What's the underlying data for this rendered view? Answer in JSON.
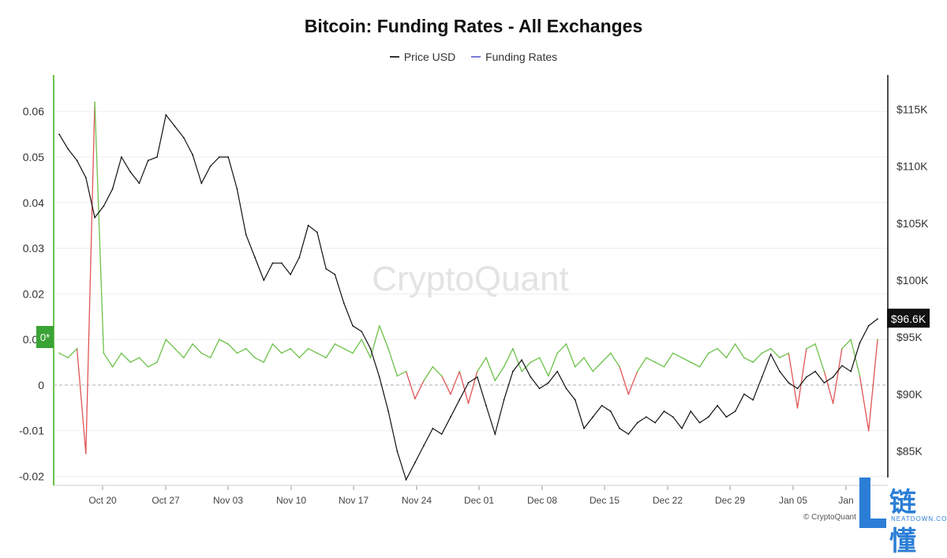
{
  "chart_data": {
    "type": "line",
    "title": "Bitcoin: Funding Rates - All Exchanges",
    "watermark": "CryptoQuant",
    "credit": "© CryptoQuant",
    "legend": [
      {
        "name": "Price USD",
        "color": "#333333"
      },
      {
        "name": "Funding Rates",
        "color": "#7b7bd6"
      }
    ],
    "legend_position": "top-center",
    "x_tick_labels": [
      "Oct 20",
      "Oct 27",
      "Nov 03",
      "Nov 10",
      "Nov 17",
      "Nov 24",
      "Dec 01",
      "Dec 08",
      "Dec 15",
      "Dec 22",
      "Dec 29",
      "Jan 05",
      "Jan"
    ],
    "left_axis": {
      "ticks": [
        -0.02,
        -0.01,
        0,
        0.01,
        0.02,
        0.03,
        0.04,
        0.05,
        0.06
      ],
      "tick_labels": [
        "-0.02",
        "-0.01",
        "0",
        "0.01",
        "0.02",
        "0.03",
        "0.04",
        "0.05",
        "0.06"
      ],
      "ylim": [
        -0.022,
        0.068
      ]
    },
    "right_axis": {
      "ticks": [
        85000,
        90000,
        95000,
        100000,
        105000,
        110000,
        115000
      ],
      "tick_labels": [
        "$85K",
        "$90K",
        "$95K",
        "$100K",
        "$105K",
        "$110K",
        "$115K"
      ],
      "ylim": [
        82000,
        118000
      ]
    },
    "current_price_label": "$96.6K",
    "current_price": 96600,
    "left_marker_label": "0*",
    "grid": true,
    "zero_line": "dashed",
    "colors": {
      "price": "#111111",
      "funding_positive": "#6cc24a",
      "funding_negative": "#e05555",
      "price_tag_bg": "#111111",
      "marker_bg": "#3aa335"
    },
    "series": [
      {
        "name": "Price USD",
        "axis": "right",
        "x": [
          "Oct 15",
          "Oct 16",
          "Oct 17",
          "Oct 18",
          "Oct 19",
          "Oct 20",
          "Oct 21",
          "Oct 22",
          "Oct 23",
          "Oct 24",
          "Oct 25",
          "Oct 26",
          "Oct 27",
          "Oct 28",
          "Oct 29",
          "Oct 30",
          "Oct 31",
          "Nov 01",
          "Nov 02",
          "Nov 03",
          "Nov 04",
          "Nov 05",
          "Nov 06",
          "Nov 07",
          "Nov 08",
          "Nov 09",
          "Nov 10",
          "Nov 11",
          "Nov 12",
          "Nov 13",
          "Nov 14",
          "Nov 15",
          "Nov 16",
          "Nov 17",
          "Nov 18",
          "Nov 19",
          "Nov 20",
          "Nov 21",
          "Nov 22",
          "Nov 23",
          "Nov 24",
          "Nov 25",
          "Nov 26",
          "Nov 27",
          "Nov 28",
          "Nov 29",
          "Nov 30",
          "Dec 01",
          "Dec 02",
          "Dec 03",
          "Dec 04",
          "Dec 05",
          "Dec 06",
          "Dec 07",
          "Dec 08",
          "Dec 09",
          "Dec 10",
          "Dec 11",
          "Dec 12",
          "Dec 13",
          "Dec 14",
          "Dec 15",
          "Dec 16",
          "Dec 17",
          "Dec 18",
          "Dec 19",
          "Dec 20",
          "Dec 21",
          "Dec 22",
          "Dec 23",
          "Dec 24",
          "Dec 25",
          "Dec 26",
          "Dec 27",
          "Dec 28",
          "Dec 29",
          "Dec 30",
          "Dec 31",
          "Jan 01",
          "Jan 02",
          "Jan 03",
          "Jan 04",
          "Jan 05",
          "Jan 06",
          "Jan 07",
          "Jan 08",
          "Jan 09",
          "Jan 10",
          "Jan 11",
          "Jan 12",
          "Jan 13",
          "Jan 14",
          "Jan 15"
        ],
        "values": [
          112800,
          111500,
          110500,
          109000,
          105500,
          106500,
          108000,
          110800,
          109500,
          108500,
          110500,
          110800,
          114500,
          113500,
          112500,
          111000,
          108500,
          110000,
          110800,
          110800,
          108000,
          104000,
          102000,
          100000,
          101500,
          101500,
          100500,
          102000,
          104800,
          104200,
          101000,
          100500,
          98000,
          96000,
          95500,
          94000,
          91500,
          88500,
          85000,
          82500,
          84000,
          85500,
          87000,
          86500,
          88000,
          89500,
          91000,
          91500,
          89000,
          86500,
          89500,
          92000,
          93000,
          91500,
          90500,
          91000,
          92000,
          90500,
          89500,
          87000,
          88000,
          89000,
          88500,
          87000,
          86500,
          87500,
          88000,
          87500,
          88500,
          88000,
          87000,
          88500,
          87500,
          88000,
          89000,
          88000,
          88500,
          90000,
          89500,
          91500,
          93500,
          92000,
          91000,
          90500,
          91500,
          92000,
          91000,
          91500,
          92500,
          92000,
          94500,
          96000,
          96600
        ]
      },
      {
        "name": "Funding Rates",
        "axis": "left",
        "x": [
          "Oct 15",
          "Oct 16",
          "Oct 17",
          "Oct 18",
          "Oct 19",
          "Oct 20",
          "Oct 21",
          "Oct 22",
          "Oct 23",
          "Oct 24",
          "Oct 25",
          "Oct 26",
          "Oct 27",
          "Oct 28",
          "Oct 29",
          "Oct 30",
          "Oct 31",
          "Nov 01",
          "Nov 02",
          "Nov 03",
          "Nov 04",
          "Nov 05",
          "Nov 06",
          "Nov 07",
          "Nov 08",
          "Nov 09",
          "Nov 10",
          "Nov 11",
          "Nov 12",
          "Nov 13",
          "Nov 14",
          "Nov 15",
          "Nov 16",
          "Nov 17",
          "Nov 18",
          "Nov 19",
          "Nov 20",
          "Nov 21",
          "Nov 22",
          "Nov 23",
          "Nov 24",
          "Nov 25",
          "Nov 26",
          "Nov 27",
          "Nov 28",
          "Nov 29",
          "Nov 30",
          "Dec 01",
          "Dec 02",
          "Dec 03",
          "Dec 04",
          "Dec 05",
          "Dec 06",
          "Dec 07",
          "Dec 08",
          "Dec 09",
          "Dec 10",
          "Dec 11",
          "Dec 12",
          "Dec 13",
          "Dec 14",
          "Dec 15",
          "Dec 16",
          "Dec 17",
          "Dec 18",
          "Dec 19",
          "Dec 20",
          "Dec 21",
          "Dec 22",
          "Dec 23",
          "Dec 24",
          "Dec 25",
          "Dec 26",
          "Dec 27",
          "Dec 28",
          "Dec 29",
          "Dec 30",
          "Dec 31",
          "Jan 01",
          "Jan 02",
          "Jan 03",
          "Jan 04",
          "Jan 05",
          "Jan 06",
          "Jan 07",
          "Jan 08",
          "Jan 09",
          "Jan 10",
          "Jan 11",
          "Jan 12",
          "Jan 13",
          "Jan 14",
          "Jan 15"
        ],
        "values": [
          0.007,
          0.006,
          0.008,
          -0.015,
          0.062,
          0.007,
          0.004,
          0.007,
          0.005,
          0.006,
          0.004,
          0.005,
          0.01,
          0.008,
          0.006,
          0.009,
          0.007,
          0.006,
          0.01,
          0.009,
          0.007,
          0.008,
          0.006,
          0.005,
          0.009,
          0.007,
          0.008,
          0.006,
          0.008,
          0.007,
          0.006,
          0.009,
          0.008,
          0.007,
          0.01,
          0.006,
          0.013,
          0.008,
          0.002,
          0.003,
          -0.003,
          0.001,
          0.004,
          0.002,
          -0.002,
          0.003,
          -0.004,
          0.003,
          0.006,
          0.001,
          0.004,
          0.008,
          0.003,
          0.005,
          0.006,
          0.002,
          0.007,
          0.009,
          0.004,
          0.006,
          0.003,
          0.005,
          0.007,
          0.004,
          -0.002,
          0.003,
          0.006,
          0.005,
          0.004,
          0.007,
          0.006,
          0.005,
          0.004,
          0.007,
          0.008,
          0.006,
          0.009,
          0.006,
          0.005,
          0.007,
          0.008,
          0.006,
          0.007,
          -0.005,
          0.008,
          0.009,
          0.003,
          -0.004,
          0.008,
          0.01,
          0.002,
          -0.01,
          0.01
        ]
      }
    ]
  }
}
